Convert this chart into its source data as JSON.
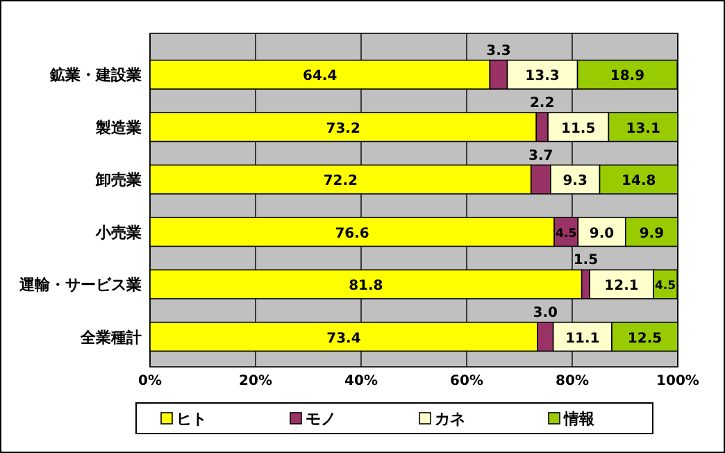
{
  "chart_data": {
    "type": "bar",
    "orientation": "horizontal",
    "stacked": true,
    "categories": [
      "鉱業・建設業",
      "製造業",
      "卸売業",
      "小売業",
      "運輸・サービス業",
      "全業種計"
    ],
    "series": [
      {
        "name": "ヒト",
        "color": "#ffff00",
        "values": [
          64.4,
          73.2,
          72.2,
          76.6,
          81.8,
          73.4
        ],
        "value_labels": [
          "64.4",
          "73.2",
          "72.2",
          "76.6",
          "81.8",
          "73.4"
        ]
      },
      {
        "name": "モノ",
        "color": "#993366",
        "values": [
          3.3,
          2.2,
          3.7,
          4.5,
          1.5,
          3.0
        ],
        "value_labels": [
          "3.3",
          "2.2",
          "3.7",
          "4.5",
          "1.5",
          "3.0"
        ]
      },
      {
        "name": "カネ",
        "color": "#ffffcc",
        "values": [
          13.3,
          11.5,
          9.3,
          9.0,
          12.1,
          11.1
        ],
        "value_labels": [
          "13.3",
          "11.5",
          "9.3",
          "9.0",
          "12.1",
          "11.1"
        ]
      },
      {
        "name": "情報",
        "color": "#99cc00",
        "values": [
          18.9,
          13.1,
          14.8,
          9.9,
          4.5,
          12.5
        ],
        "value_labels": [
          "18.9",
          "13.1",
          "14.8",
          "9.9",
          "4.5",
          "12.5"
        ]
      }
    ],
    "xlim": [
      0,
      100
    ],
    "xticks": [
      {
        "value": 0,
        "label": "0%"
      },
      {
        "value": 20,
        "label": "20%"
      },
      {
        "value": 40,
        "label": "40%"
      },
      {
        "value": 60,
        "label": "60%"
      },
      {
        "value": 80,
        "label": "80%"
      },
      {
        "value": 100,
        "label": "100%"
      }
    ],
    "grid": "x",
    "legend": "bottom"
  }
}
